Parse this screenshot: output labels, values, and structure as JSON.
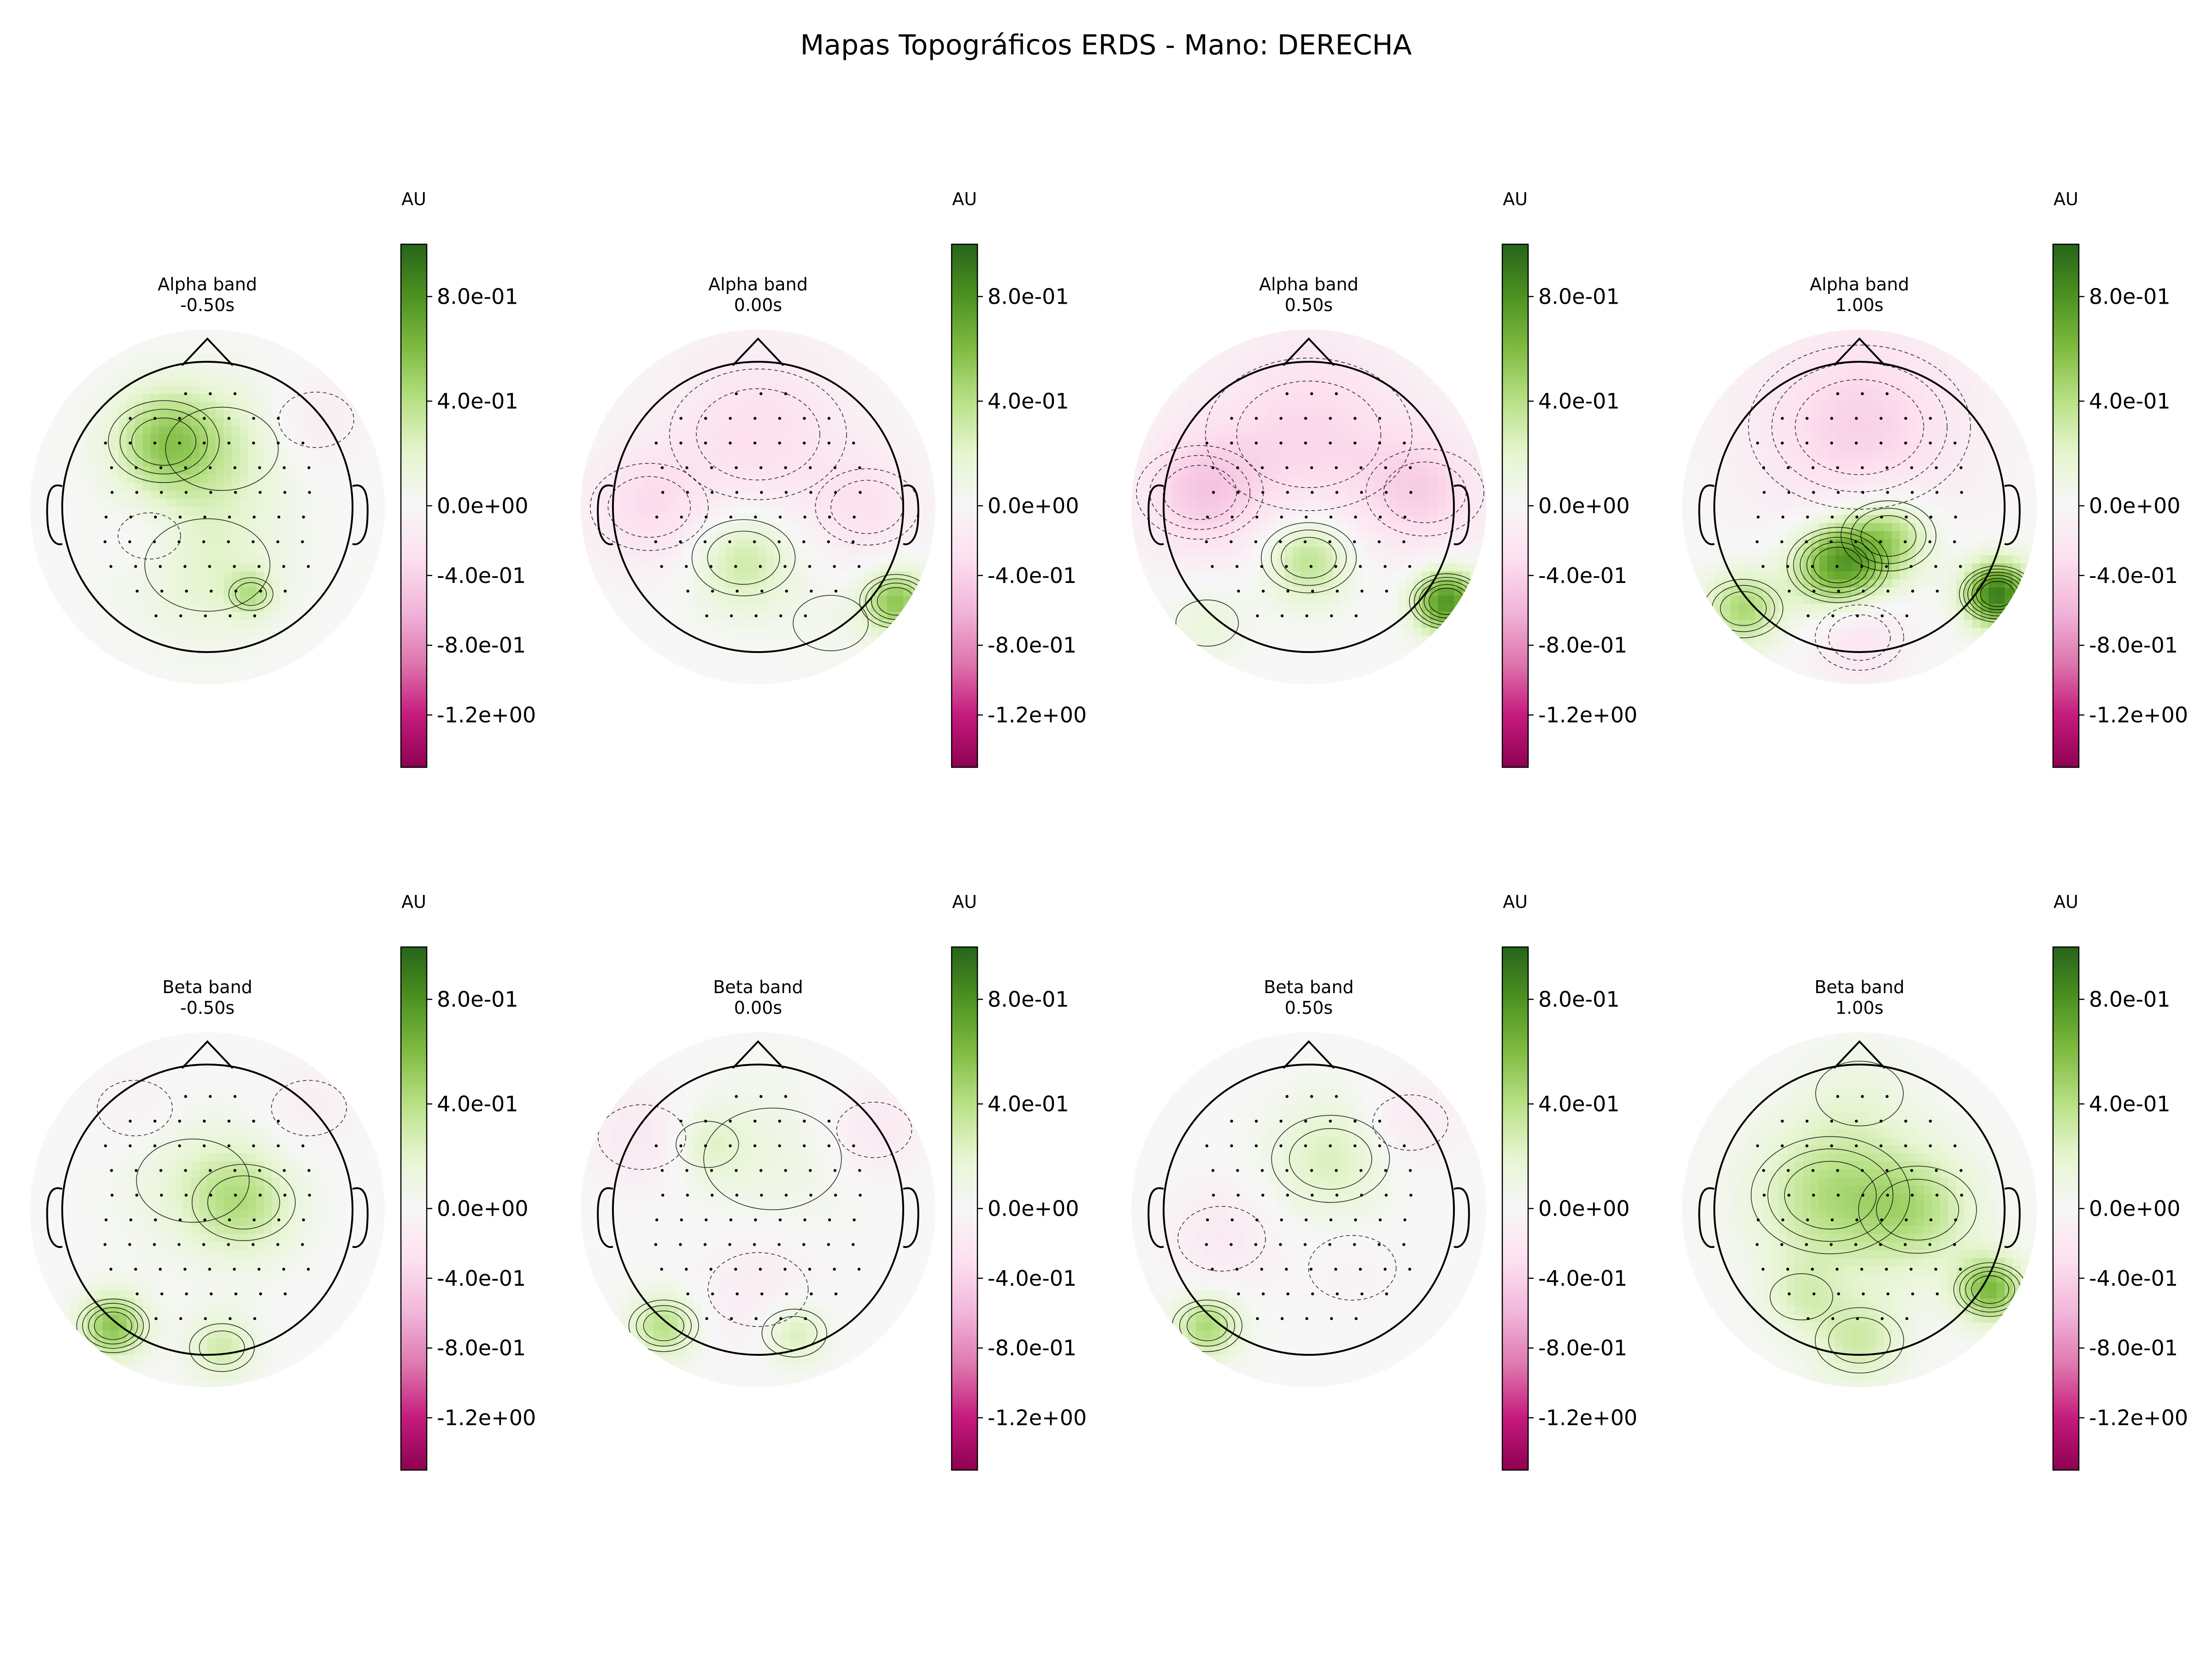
{
  "figure": {
    "title": "Mapas Topográficos ERDS - Mano: DERECHA"
  },
  "colormap": {
    "name": "PiYG",
    "stops": [
      "#8e0152",
      "#c51b7d",
      "#de77ae",
      "#f1b6da",
      "#fde0ef",
      "#f7f7f7",
      "#e6f5d0",
      "#b8e186",
      "#7fbc41",
      "#4d9221",
      "#276419"
    ],
    "vmin": -1.5,
    "vmax": 1.0,
    "ticks": [
      0.8,
      0.4,
      0.0,
      -0.4,
      -0.8,
      -1.2
    ],
    "tick_labels": [
      "8.0e-01",
      "4.0e-01",
      "0.0e+00",
      "-4.0e-01",
      "-8.0e-01",
      "-1.2e+00"
    ],
    "unit_label": "AU"
  },
  "chart_data": [
    {
      "type": "heatmap",
      "band": "Alpha band",
      "time": "-0.50s",
      "blobs": [
        {
          "x": -0.3,
          "y": 0.45,
          "r": 0.35,
          "v": 0.45
        },
        {
          "x": 0.1,
          "y": 0.4,
          "r": 0.45,
          "v": 0.22
        },
        {
          "x": 0.0,
          "y": -0.4,
          "r": 0.5,
          "v": 0.2
        },
        {
          "x": -0.4,
          "y": -0.2,
          "r": 0.25,
          "v": -0.1
        },
        {
          "x": 0.75,
          "y": 0.6,
          "r": 0.3,
          "v": -0.15
        },
        {
          "x": 0.3,
          "y": -0.6,
          "r": 0.15,
          "v": 0.3
        }
      ]
    },
    {
      "type": "heatmap",
      "band": "Alpha band",
      "time": "0.00s",
      "blobs": [
        {
          "x": -0.1,
          "y": -0.35,
          "r": 0.35,
          "v": 0.35
        },
        {
          "x": 0.0,
          "y": 0.5,
          "r": 0.6,
          "v": -0.3
        },
        {
          "x": -0.75,
          "y": 0.0,
          "r": 0.4,
          "v": -0.3
        },
        {
          "x": 0.75,
          "y": 0.0,
          "r": 0.35,
          "v": -0.25
        },
        {
          "x": 0.95,
          "y": -0.65,
          "r": 0.22,
          "v": 0.55
        },
        {
          "x": 0.5,
          "y": -0.8,
          "r": 0.3,
          "v": 0.05
        }
      ]
    },
    {
      "type": "heatmap",
      "band": "Alpha band",
      "time": "0.50s",
      "blobs": [
        {
          "x": 0.0,
          "y": -0.35,
          "r": 0.3,
          "v": 0.45
        },
        {
          "x": 0.0,
          "y": 0.5,
          "r": 0.7,
          "v": -0.35
        },
        {
          "x": -0.75,
          "y": 0.1,
          "r": 0.4,
          "v": -0.4
        },
        {
          "x": 0.8,
          "y": 0.1,
          "r": 0.4,
          "v": -0.35
        },
        {
          "x": 0.95,
          "y": -0.65,
          "r": 0.22,
          "v": 0.8
        },
        {
          "x": -0.7,
          "y": -0.8,
          "r": 0.25,
          "v": 0.15
        }
      ]
    },
    {
      "type": "heatmap",
      "band": "Alpha band",
      "time": "1.00s",
      "blobs": [
        {
          "x": -0.15,
          "y": -0.4,
          "r": 0.3,
          "v": 0.75
        },
        {
          "x": 0.2,
          "y": -0.2,
          "r": 0.3,
          "v": 0.5
        },
        {
          "x": -0.8,
          "y": -0.7,
          "r": 0.25,
          "v": 0.45
        },
        {
          "x": 0.95,
          "y": -0.6,
          "r": 0.22,
          "v": 0.9
        },
        {
          "x": 0.0,
          "y": 0.55,
          "r": 0.7,
          "v": -0.4
        },
        {
          "x": 0.0,
          "y": -0.9,
          "r": 0.3,
          "v": -0.25
        }
      ]
    },
    {
      "type": "heatmap",
      "band": "Beta band",
      "time": "-0.50s",
      "blobs": [
        {
          "x": 0.25,
          "y": 0.05,
          "r": 0.35,
          "v": 0.35
        },
        {
          "x": -0.1,
          "y": 0.2,
          "r": 0.45,
          "v": 0.15
        },
        {
          "x": -0.65,
          "y": -0.8,
          "r": 0.22,
          "v": 0.55
        },
        {
          "x": 0.1,
          "y": -0.95,
          "r": 0.22,
          "v": 0.3
        },
        {
          "x": 0.7,
          "y": 0.7,
          "r": 0.3,
          "v": -0.1
        },
        {
          "x": -0.5,
          "y": 0.7,
          "r": 0.3,
          "v": -0.08
        }
      ]
    },
    {
      "type": "heatmap",
      "band": "Beta band",
      "time": "0.00s",
      "blobs": [
        {
          "x": -0.35,
          "y": 0.45,
          "r": 0.25,
          "v": 0.2
        },
        {
          "x": 0.1,
          "y": 0.35,
          "r": 0.55,
          "v": 0.1
        },
        {
          "x": -0.65,
          "y": -0.8,
          "r": 0.22,
          "v": 0.4
        },
        {
          "x": 0.25,
          "y": -0.85,
          "r": 0.22,
          "v": 0.3
        },
        {
          "x": 0.0,
          "y": -0.55,
          "r": 0.4,
          "v": -0.15
        },
        {
          "x": -0.8,
          "y": 0.5,
          "r": 0.35,
          "v": -0.2
        },
        {
          "x": 0.8,
          "y": 0.55,
          "r": 0.3,
          "v": -0.2
        }
      ]
    },
    {
      "type": "heatmap",
      "band": "Beta band",
      "time": "0.50s",
      "blobs": [
        {
          "x": 0.15,
          "y": 0.35,
          "r": 0.4,
          "v": 0.25
        },
        {
          "x": -0.7,
          "y": -0.8,
          "r": 0.22,
          "v": 0.45
        },
        {
          "x": -0.6,
          "y": -0.2,
          "r": 0.35,
          "v": -0.18
        },
        {
          "x": 0.7,
          "y": 0.6,
          "r": 0.3,
          "v": -0.18
        },
        {
          "x": 0.3,
          "y": -0.4,
          "r": 0.35,
          "v": -0.05
        }
      ]
    },
    {
      "type": "heatmap",
      "band": "Beta band",
      "time": "1.00s",
      "blobs": [
        {
          "x": -0.2,
          "y": 0.1,
          "r": 0.5,
          "v": 0.4
        },
        {
          "x": 0.4,
          "y": 0.0,
          "r": 0.4,
          "v": 0.35
        },
        {
          "x": -0.4,
          "y": -0.6,
          "r": 0.25,
          "v": 0.2
        },
        {
          "x": 0.9,
          "y": -0.55,
          "r": 0.22,
          "v": 0.6
        },
        {
          "x": 0.0,
          "y": -0.9,
          "r": 0.3,
          "v": 0.3
        },
        {
          "x": 0.0,
          "y": 0.8,
          "r": 0.35,
          "v": 0.1
        }
      ]
    }
  ]
}
